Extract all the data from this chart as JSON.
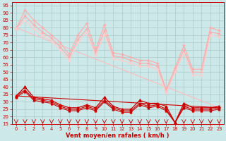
{
  "background_color": "#cce8e8",
  "grid_color": "#aacccc",
  "xlabel": "Vent moyen/en rafales ( km/h )",
  "xlabel_color": "#cc0000",
  "tick_color": "#cc0000",
  "xlim": [
    -0.5,
    23.5
  ],
  "ylim": [
    15,
    97
  ],
  "yticks": [
    15,
    20,
    25,
    30,
    35,
    40,
    45,
    50,
    55,
    60,
    65,
    70,
    75,
    80,
    85,
    90,
    95
  ],
  "xticks": [
    0,
    1,
    2,
    3,
    4,
    5,
    6,
    7,
    8,
    9,
    10,
    11,
    12,
    13,
    14,
    15,
    16,
    17,
    18,
    19,
    20,
    21,
    22,
    23
  ],
  "series_pink_jagged1": {
    "x": [
      0,
      1,
      2,
      3,
      4,
      5,
      6,
      7,
      8,
      9,
      10,
      11,
      12,
      13,
      14,
      15,
      16,
      17,
      18,
      19,
      20,
      21,
      22,
      23
    ],
    "y": [
      79,
      92,
      85,
      80,
      75,
      70,
      62,
      75,
      83,
      65,
      82,
      63,
      62,
      60,
      58,
      58,
      56,
      38,
      53,
      68,
      52,
      52,
      80,
      78
    ],
    "color": "#ffaaaa",
    "lw": 0.8,
    "marker": "+",
    "ms": 3.5
  },
  "series_pink_jagged2": {
    "x": [
      0,
      1,
      2,
      3,
      4,
      5,
      6,
      7,
      8,
      9,
      10,
      11,
      12,
      13,
      14,
      15,
      16,
      17,
      18,
      19,
      20,
      21,
      22,
      23
    ],
    "y": [
      79,
      88,
      82,
      77,
      73,
      67,
      60,
      72,
      79,
      63,
      78,
      61,
      60,
      58,
      56,
      56,
      54,
      37,
      51,
      65,
      50,
      50,
      77,
      76
    ],
    "color": "#ffaaaa",
    "lw": 0.8,
    "marker": "+",
    "ms": 3.0
  },
  "series_pink_jagged3": {
    "x": [
      0,
      1,
      2,
      3,
      4,
      5,
      6,
      7,
      8,
      9,
      10,
      11,
      12,
      13,
      14,
      15,
      16,
      17,
      18,
      19,
      20,
      21,
      22,
      23
    ],
    "y": [
      79,
      85,
      79,
      75,
      71,
      65,
      58,
      70,
      77,
      61,
      76,
      59,
      58,
      56,
      54,
      54,
      52,
      36,
      50,
      63,
      48,
      48,
      75,
      74
    ],
    "color": "#ffcccc",
    "lw": 0.9,
    "marker": "+",
    "ms": 3.0
  },
  "series_pink_linear": {
    "x": [
      0,
      23
    ],
    "y": [
      80,
      26
    ],
    "color": "#ffbbbb",
    "lw": 0.8,
    "marker": null,
    "ms": 0
  },
  "series_red_jagged1": {
    "x": [
      0,
      1,
      2,
      3,
      4,
      5,
      6,
      7,
      8,
      9,
      10,
      11,
      12,
      13,
      14,
      15,
      16,
      17,
      18,
      19,
      20,
      21,
      22,
      23
    ],
    "y": [
      34,
      40,
      33,
      32,
      31,
      28,
      26,
      26,
      28,
      26,
      33,
      27,
      25,
      25,
      31,
      29,
      29,
      27,
      16,
      29,
      26,
      26,
      26,
      27
    ],
    "color": "#cc0000",
    "lw": 0.9,
    "marker": "^",
    "ms": 2.5
  },
  "series_red_jagged2": {
    "x": [
      0,
      1,
      2,
      3,
      4,
      5,
      6,
      7,
      8,
      9,
      10,
      11,
      12,
      13,
      14,
      15,
      16,
      17,
      18,
      19,
      20,
      21,
      22,
      23
    ],
    "y": [
      34,
      38,
      32,
      31,
      30,
      27,
      25,
      25,
      27,
      25,
      31,
      26,
      24,
      24,
      29,
      27,
      28,
      25,
      16,
      27,
      25,
      25,
      25,
      26
    ],
    "color": "#cc0000",
    "lw": 0.8,
    "marker": "^",
    "ms": 2.0
  },
  "series_red_jagged3": {
    "x": [
      0,
      1,
      2,
      3,
      4,
      5,
      6,
      7,
      8,
      9,
      10,
      11,
      12,
      13,
      14,
      15,
      16,
      17,
      18,
      19,
      20,
      21,
      22,
      23
    ],
    "y": [
      33,
      37,
      31,
      30,
      29,
      26,
      24,
      24,
      26,
      24,
      30,
      25,
      23,
      23,
      28,
      26,
      27,
      24,
      16,
      26,
      24,
      24,
      24,
      25
    ],
    "color": "#cc0000",
    "lw": 0.8,
    "marker": "^",
    "ms": 2.0
  },
  "series_red_linear": {
    "x": [
      0,
      23
    ],
    "y": [
      34,
      26
    ],
    "color": "#cc0000",
    "lw": 0.8,
    "marker": null,
    "ms": 0
  }
}
